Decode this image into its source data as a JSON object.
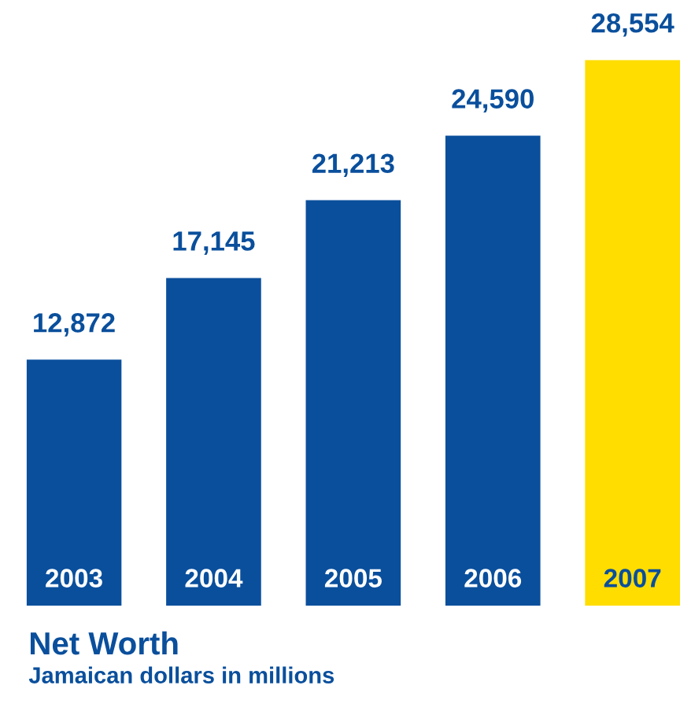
{
  "chart_data": {
    "type": "bar",
    "title": "Net Worth",
    "subtitle": "Jamaican dollars in millions",
    "categories": [
      "2003",
      "2004",
      "2005",
      "2006",
      "2007"
    ],
    "values": [
      12872,
      17145,
      21213,
      24590,
      28554
    ],
    "colors": [
      "#0a4f9c",
      "#0a4f9c",
      "#0a4f9c",
      "#0a4f9c",
      "#ffdd00"
    ],
    "value_labels": [
      "12,872",
      "17,145",
      "21,213",
      "24,590",
      "28,554"
    ]
  }
}
